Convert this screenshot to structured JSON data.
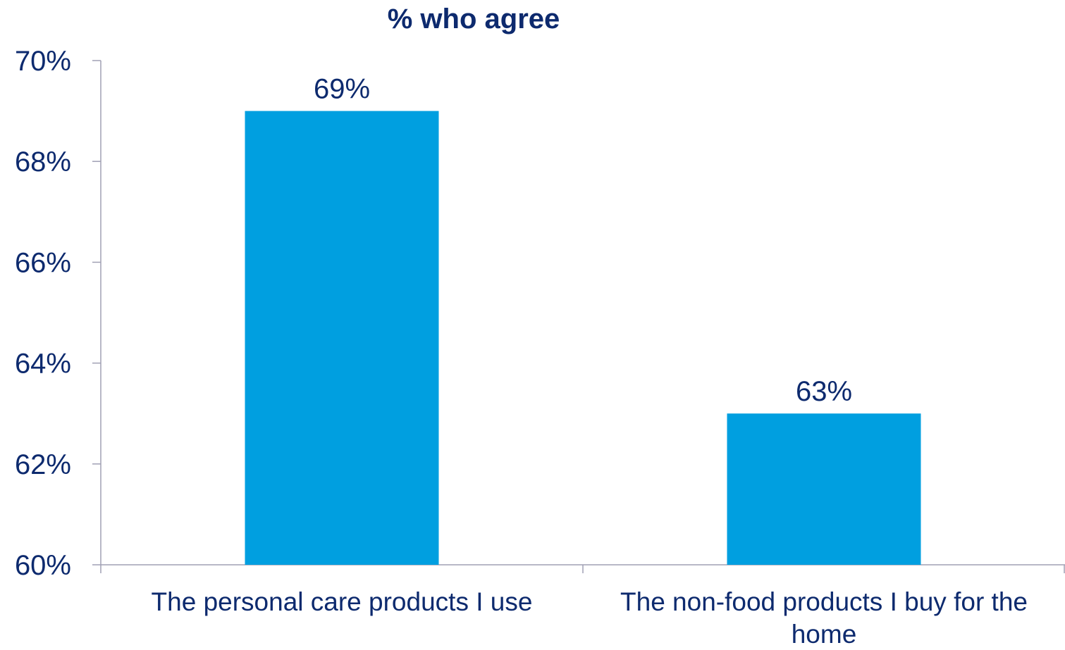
{
  "chart_data": {
    "type": "bar",
    "title": "% who agree",
    "categories": [
      [
        "The personal care products I use"
      ],
      [
        "The non-food products I buy for the",
        "home"
      ]
    ],
    "values": [
      69,
      63
    ],
    "data_labels": [
      "69%",
      "63%"
    ],
    "ylim": [
      60,
      70
    ],
    "yticks": [
      60,
      62,
      64,
      66,
      68,
      70
    ],
    "ytick_labels": [
      "60%",
      "62%",
      "64%",
      "66%",
      "68%",
      "70%"
    ],
    "xlabel": "",
    "ylabel": "",
    "grid": false,
    "legend": "none",
    "colors": {
      "bar": "#009fe0",
      "text": "#0d2a6e",
      "axis": "#a0a0b4"
    }
  }
}
